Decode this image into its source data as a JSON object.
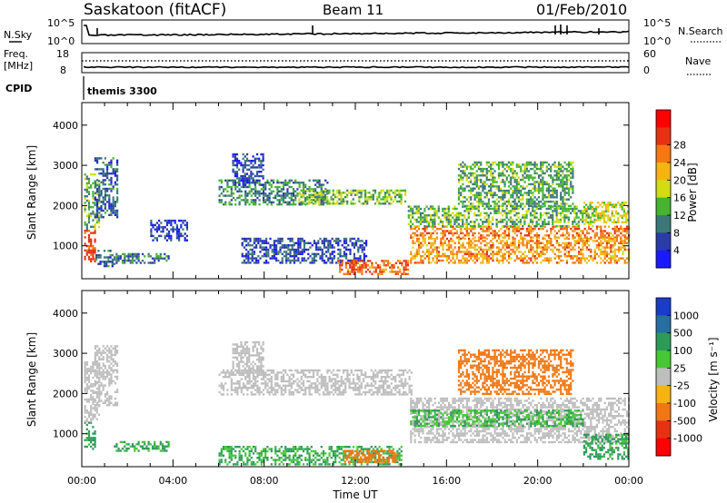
{
  "header": {
    "station": "Saskatoon (fitACF)",
    "beam": "Beam 11",
    "date": "01/Feb/2010"
  },
  "noise_panel": {
    "left_label": "N.Sky",
    "left_ticks": [
      "10^5",
      "10^0"
    ],
    "right_label": "N.Search",
    "right_ticks": [
      "10^5",
      "10^0"
    ]
  },
  "freq_panel": {
    "left_label_1": "Freq.",
    "left_label_2": "[MHz]",
    "left_ticks": [
      "18",
      "8"
    ],
    "right_label": "Nave",
    "right_ticks": [
      "60",
      "0"
    ]
  },
  "cpid": {
    "label": "CPID",
    "value": "themis 3300"
  },
  "chart_data": [
    {
      "type": "heatmap",
      "name": "power",
      "ylabel": "Slant Range [km]",
      "xlabel": "",
      "ylim": [
        180,
        4560
      ],
      "xlim_hours": [
        0,
        24
      ],
      "yticks": [
        "1000",
        "2000",
        "3000",
        "4000"
      ],
      "colorbar": {
        "label": "Power [dB]",
        "ticks": [
          "4",
          "8",
          "12",
          "16",
          "20",
          "24",
          "28"
        ],
        "colors": [
          "#1a1aff",
          "#2a3ca8",
          "#3c7878",
          "#46b432",
          "#d2dc14",
          "#f5b414",
          "#f57814",
          "#e63214",
          "#ff0000"
        ]
      },
      "regions": [
        {
          "t": [
            0.1,
            0.55
          ],
          "r": [
            600,
            1400
          ],
          "db": 30
        },
        {
          "t": [
            0.1,
            0.8
          ],
          "r": [
            1400,
            2800
          ],
          "db": 14
        },
        {
          "t": [
            0.55,
            1.6
          ],
          "r": [
            1700,
            3200
          ],
          "db": 8
        },
        {
          "t": [
            0.6,
            1.4
          ],
          "r": [
            500,
            900
          ],
          "db": 8
        },
        {
          "t": [
            1.4,
            3.8
          ],
          "r": [
            580,
            820
          ],
          "db": 9
        },
        {
          "t": [
            3.0,
            4.6
          ],
          "r": [
            1150,
            1650
          ],
          "db": 6
        },
        {
          "t": [
            6.0,
            10.8
          ],
          "r": [
            2050,
            2650
          ],
          "db": 11
        },
        {
          "t": [
            9.5,
            14.2
          ],
          "r": [
            2050,
            2400
          ],
          "db": 15
        },
        {
          "t": [
            6.6,
            8.0
          ],
          "r": [
            2500,
            3300
          ],
          "db": 6
        },
        {
          "t": [
            7.0,
            12.5
          ],
          "r": [
            600,
            1200
          ],
          "db": 6
        },
        {
          "t": [
            11.2,
            14.3
          ],
          "r": [
            300,
            650
          ],
          "db": 28
        },
        {
          "t": [
            14.4,
            24.0
          ],
          "r": [
            1200,
            1500
          ],
          "db": 26
        },
        {
          "t": [
            14.4,
            24.0
          ],
          "r": [
            600,
            1200
          ],
          "db": 24
        },
        {
          "t": [
            14.3,
            22.5
          ],
          "r": [
            1500,
            2000
          ],
          "db": 14
        },
        {
          "t": [
            16.5,
            21.5
          ],
          "r": [
            2000,
            3100
          ],
          "db": 13
        },
        {
          "t": [
            22.0,
            24.0
          ],
          "r": [
            1600,
            2100
          ],
          "db": 18
        }
      ]
    },
    {
      "type": "heatmap",
      "name": "velocity",
      "ylabel": "Slant Range [km]",
      "xlabel": "Time UT",
      "ylim": [
        180,
        4560
      ],
      "xlim_hours": [
        0,
        24
      ],
      "yticks": [
        "1000",
        "2000",
        "3000",
        "4000"
      ],
      "xticks": [
        "00:00",
        "04:00",
        "08:00",
        "12:00",
        "16:00",
        "20:00",
        "00:00"
      ],
      "colorbar": {
        "label": "Velocity [m s⁻¹]",
        "ticks": [
          "1000",
          "500",
          "100",
          "25",
          "-25",
          "-100",
          "-500",
          "-1000"
        ],
        "colors": [
          "#1a3cc8",
          "#286ea0",
          "#2d9a5a",
          "#46c832",
          "#bebebe",
          "#f5b414",
          "#f07814",
          "#e63214",
          "#ff0000"
        ]
      },
      "regions": [
        {
          "t": [
            0.1,
            0.55
          ],
          "r": [
            600,
            1300
          ],
          "vel": 150
        },
        {
          "t": [
            0.1,
            0.8
          ],
          "r": [
            1300,
            2800
          ],
          "vel": 0
        },
        {
          "t": [
            0.55,
            1.6
          ],
          "r": [
            1700,
            3200
          ],
          "vel": 0
        },
        {
          "t": [
            1.4,
            3.8
          ],
          "r": [
            580,
            820
          ],
          "vel": 120
        },
        {
          "t": [
            6.0,
            14.5
          ],
          "r": [
            1950,
            2600
          ],
          "vel": 0
        },
        {
          "t": [
            6.6,
            8.0
          ],
          "r": [
            2500,
            3300
          ],
          "vel": 0
        },
        {
          "t": [
            6.0,
            14.0
          ],
          "r": [
            250,
            700
          ],
          "vel": 110
        },
        {
          "t": [
            11.5,
            13.8
          ],
          "r": [
            300,
            600
          ],
          "vel": -200
        },
        {
          "t": [
            14.4,
            24.0
          ],
          "r": [
            800,
            1900
          ],
          "vel": 0
        },
        {
          "t": [
            14.4,
            22.0
          ],
          "r": [
            1200,
            1600
          ],
          "vel": 90
        },
        {
          "t": [
            16.5,
            21.5
          ],
          "r": [
            2000,
            3100
          ],
          "vel": -300
        },
        {
          "t": [
            22.0,
            24.0
          ],
          "r": [
            400,
            1000
          ],
          "vel": 150
        }
      ]
    }
  ]
}
